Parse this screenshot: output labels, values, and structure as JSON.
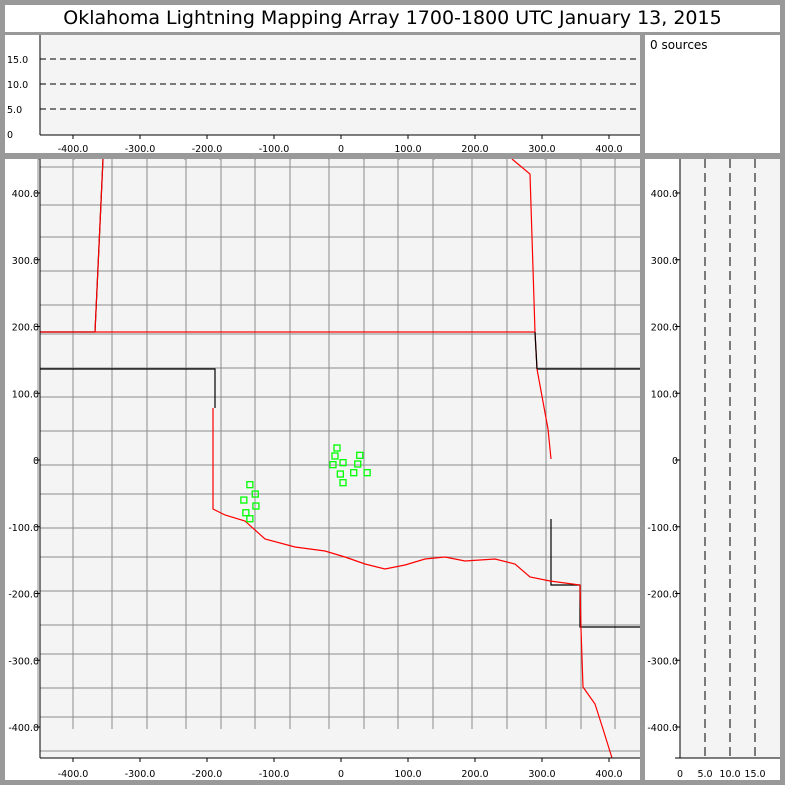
{
  "title": "Oklahoma Lightning Mapping Array   1700-1800 UTC  January 13, 2015",
  "info": {
    "sources_label": "0 sources"
  },
  "colors": {
    "plot_bg": "#f4f4f4",
    "county": "#8c8c8c",
    "state": "#000000",
    "oklahoma_border": "#ff0000",
    "source": "#00ff00"
  },
  "axes": {
    "x_ticks": [
      "-400.0",
      "-300.0",
      "-200.0",
      "-100.0",
      "0",
      "100.0",
      "200.0",
      "300.0",
      "400.0"
    ],
    "x_values": [
      -400,
      -300,
      -200,
      -100,
      0,
      100,
      200,
      300,
      400
    ],
    "y_ticks": [
      "400.0",
      "300.0",
      "200.0",
      "100.0",
      "0",
      "-100.0",
      "-200.0",
      "-300.0",
      "-400.0"
    ],
    "y_values": [
      400,
      300,
      200,
      100,
      0,
      -100,
      -200,
      -300,
      -400
    ],
    "alt_ticks": [
      "0",
      "5.0",
      "10.0",
      "15.0"
    ],
    "alt_values": [
      0,
      5,
      10,
      15
    ]
  },
  "sources_km": [
    [
      -6,
      18
    ],
    [
      -9,
      6
    ],
    [
      -12,
      -7
    ],
    [
      3,
      -4
    ],
    [
      28,
      7
    ],
    [
      25,
      -6
    ],
    [
      -1,
      -21
    ],
    [
      19,
      -19
    ],
    [
      39,
      -19
    ],
    [
      3,
      -34
    ],
    [
      -136,
      -37
    ],
    [
      -128,
      -51
    ],
    [
      -145,
      -60
    ],
    [
      -127,
      -69
    ],
    [
      -142,
      -79
    ],
    [
      -136,
      -88
    ]
  ]
}
